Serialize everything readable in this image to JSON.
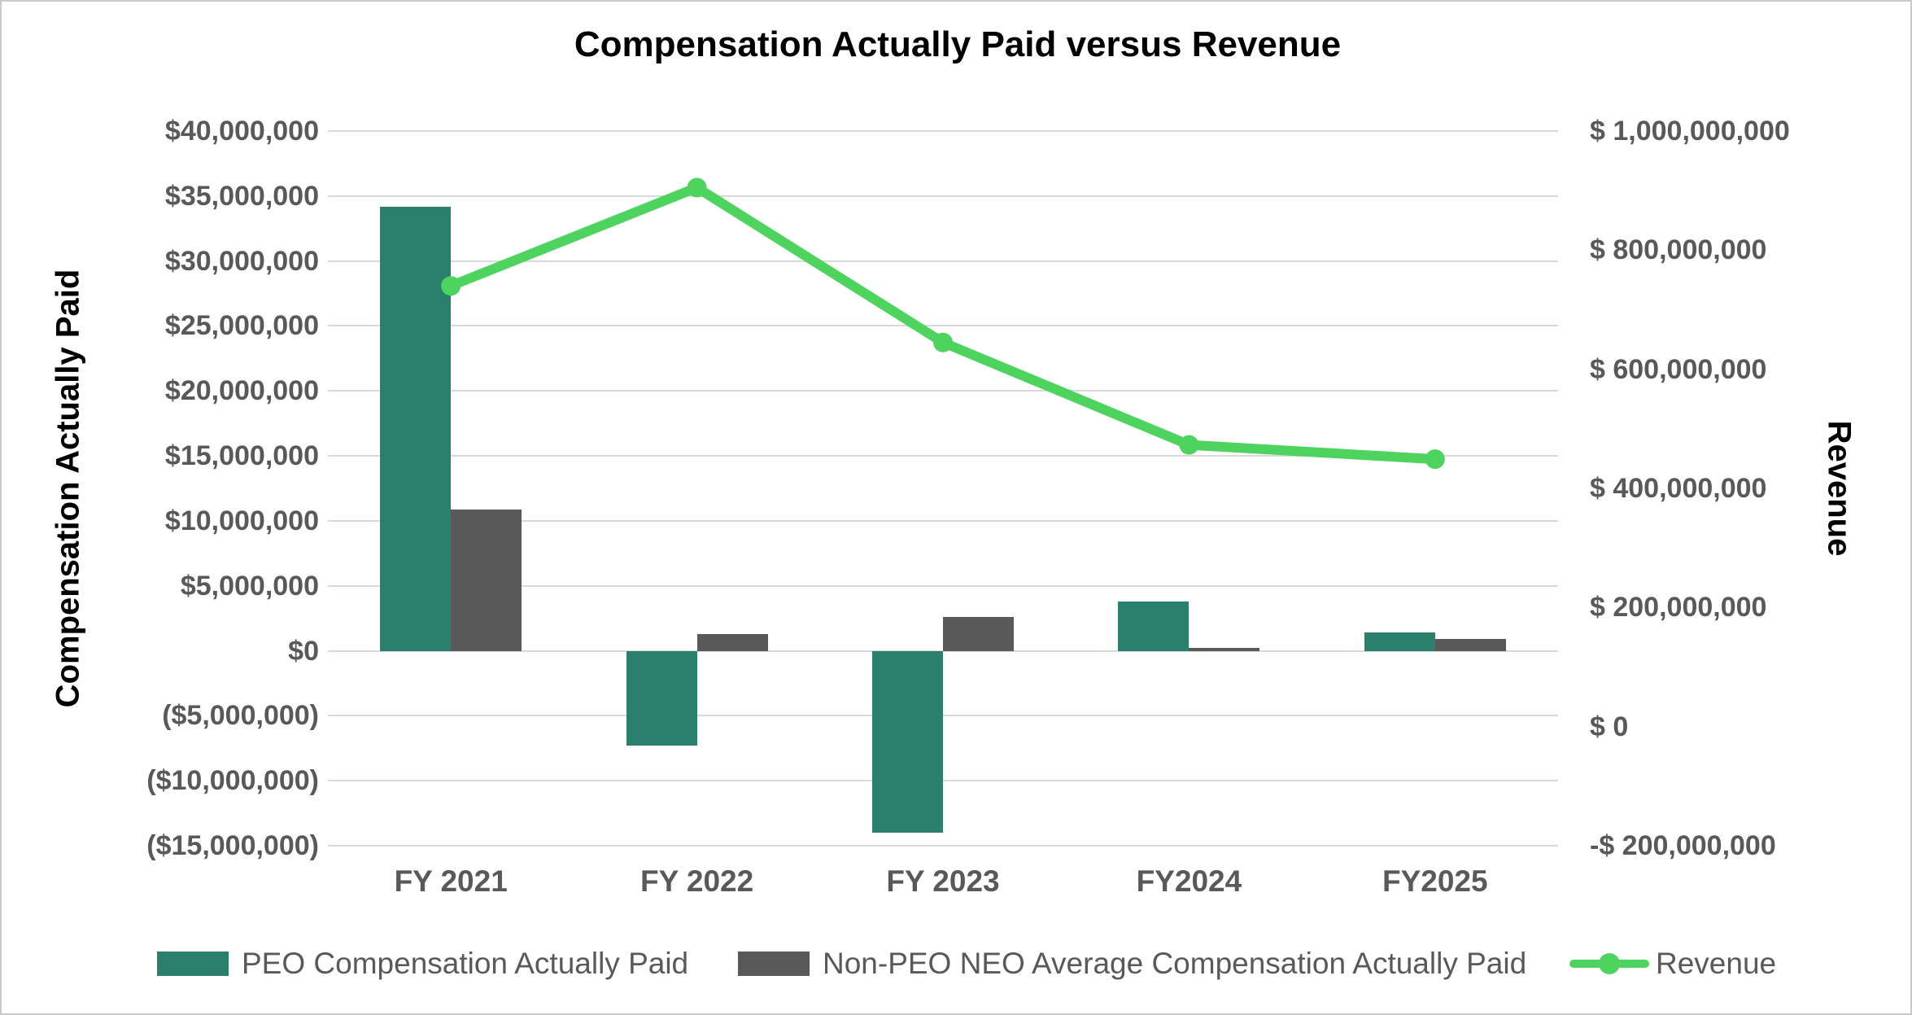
{
  "title": "Compensation Actually Paid versus Revenue",
  "chart_data": {
    "type": "bar",
    "subtype": "grouped-columns-with-overlaid-line",
    "categories": [
      "FY 2021",
      "FY 2022",
      "FY 2023",
      "FY2024",
      "FY2025"
    ],
    "series": [
      {
        "name": "PEO Compensation Actually Paid",
        "render": "column",
        "axis": "left",
        "color": "#2A806D",
        "values": [
          34200000,
          -7300000,
          -14000000,
          3800000,
          1400000
        ]
      },
      {
        "name": "Non-PEO NEO Average Compensation Actually Paid",
        "render": "column",
        "axis": "left",
        "color": "#595959",
        "values": [
          10900000,
          1300000,
          2600000,
          200000,
          900000
        ]
      },
      {
        "name": "Revenue",
        "render": "line",
        "axis": "right",
        "color": "#4DD35E",
        "values": [
          740000000,
          905000000,
          645000000,
          473000000,
          449000000
        ]
      }
    ],
    "left_axis": {
      "label": "Compensation Actually Paid",
      "min": -15000000,
      "max": 40000000,
      "step": 5000000,
      "tick_labels": [
        "$40,000,000",
        "$35,000,000",
        "$30,000,000",
        "$25,000,000",
        "$20,000,000",
        "$15,000,000",
        "$10,000,000",
        "$5,000,000",
        "$0",
        "($5,000,000)",
        "($10,000,000)",
        "($15,000,000)"
      ]
    },
    "right_axis": {
      "label": "Revenue",
      "min": -200000000,
      "max": 1000000000,
      "step": 200000000,
      "tick_labels": [
        "$ 1,000,000,000",
        "$ 800,000,000",
        "$ 600,000,000",
        "$ 400,000,000",
        "$ 200,000,000",
        "$ 0",
        "-$ 200,000,000"
      ]
    },
    "grid": true,
    "legend_position": "bottom",
    "colors": {
      "grid": "#D9D9D9",
      "tick_text": "#595959",
      "title_text": "#000000",
      "background": "#FFFFFF",
      "border": "#C9C9C9"
    }
  }
}
